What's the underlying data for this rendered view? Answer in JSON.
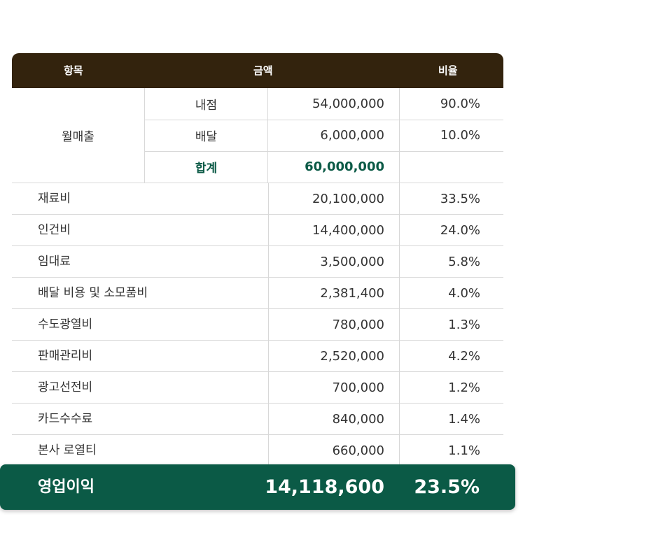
{
  "header": {
    "item": "항목",
    "amount": "금액",
    "ratio": "비율"
  },
  "sales": {
    "label": "월매출",
    "rows": [
      {
        "name": "내점",
        "amount": "54,000,000",
        "ratio": "90.0%"
      },
      {
        "name": "배달",
        "amount": "6,000,000",
        "ratio": "10.0%"
      },
      {
        "name": "합계",
        "amount": "60,000,000",
        "ratio": ""
      }
    ]
  },
  "expenses": [
    {
      "name": "재료비",
      "amount": "20,100,000",
      "ratio": "33.5%"
    },
    {
      "name": "인건비",
      "amount": "14,400,000",
      "ratio": "24.0%"
    },
    {
      "name": "임대료",
      "amount": "3,500,000",
      "ratio": "5.8%"
    },
    {
      "name": "배달 비용 및 소모품비",
      "amount": "2,381,400",
      "ratio": "4.0%"
    },
    {
      "name": "수도광열비",
      "amount": "780,000",
      "ratio": "1.3%"
    },
    {
      "name": "판매관리비",
      "amount": "2,520,000",
      "ratio": "4.2%"
    },
    {
      "name": "광고선전비",
      "amount": "700,000",
      "ratio": "1.2%"
    },
    {
      "name": "카드수수료",
      "amount": "840,000",
      "ratio": "1.4%"
    },
    {
      "name": "본사 로열티",
      "amount": "660,000",
      "ratio": "1.1%"
    }
  ],
  "operating_profit": {
    "label": "영업이익",
    "amount": "14,118,600",
    "ratio": "23.5%"
  },
  "colors": {
    "header_bg": "#33230d",
    "accent_green": "#0b5a46",
    "border": "#d8d8d8"
  }
}
